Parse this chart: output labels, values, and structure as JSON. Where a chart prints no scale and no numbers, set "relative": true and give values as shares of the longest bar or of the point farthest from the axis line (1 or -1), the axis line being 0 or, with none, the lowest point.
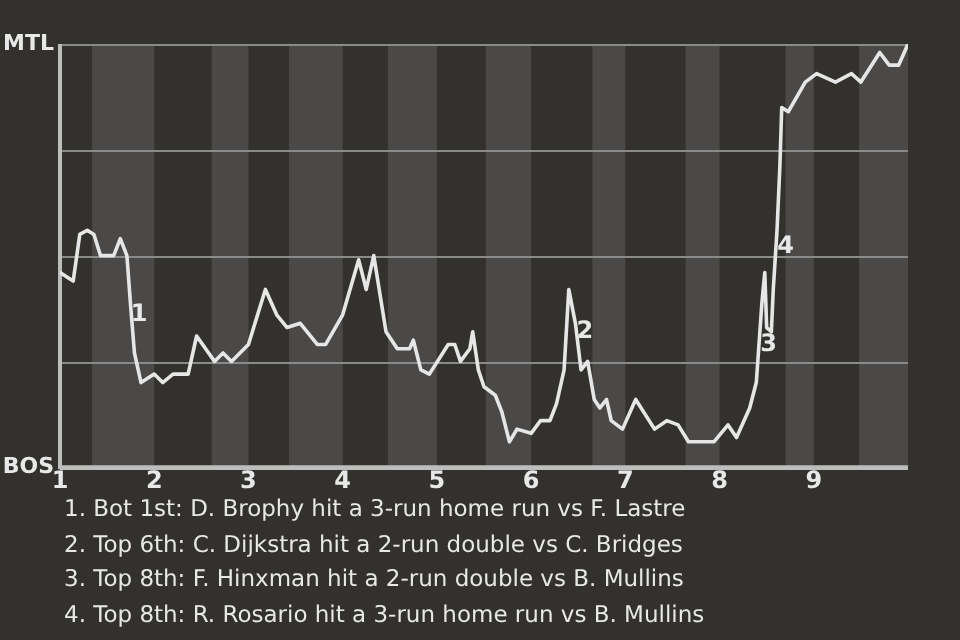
{
  "chart_data": {
    "type": "line",
    "relative": true,
    "x": [
      1,
      1.14,
      1.21,
      1.29,
      1.36,
      1.43,
      1.57,
      1.64,
      1.71,
      1.75,
      1.79,
      1.86,
      1.93,
      2,
      2.09,
      2.2,
      2.36,
      2.45,
      2.64,
      2.73,
      2.82,
      3,
      3.18,
      3.3,
      3.41,
      3.55,
      3.73,
      3.82,
      4,
      4.17,
      4.25,
      4.33,
      4.46,
      4.58,
      4.71,
      4.75,
      4.83,
      4.92,
      5.12,
      5.19,
      5.25,
      5.35,
      5.38,
      5.44,
      5.5,
      5.62,
      5.69,
      5.77,
      5.85,
      6,
      6.1,
      6.2,
      6.27,
      6.35,
      6.4,
      6.47,
      6.53,
      6.6,
      6.67,
      6.73,
      6.8,
      6.85,
      6.97,
      7.11,
      7.31,
      7.44,
      7.56,
      7.67,
      7.83,
      7.94,
      8.09,
      8.18,
      8.32,
      8.39,
      8.45,
      8.48,
      8.5,
      8.55,
      8.57,
      8.61,
      8.64,
      8.66,
      8.73,
      8.91,
      9.03,
      9.23,
      9.4,
      9.5,
      9.7,
      9.8,
      9.9,
      10
    ],
    "series": [
      {
        "color": "#e6e6e6",
        "values": [
          0.46,
          0.44,
          0.55,
          0.56,
          0.55,
          0.5,
          0.5,
          0.54,
          0.5,
          0.38,
          0.27,
          0.2,
          0.21,
          0.22,
          0.2,
          0.22,
          0.22,
          0.31,
          0.25,
          0.27,
          0.25,
          0.29,
          0.42,
          0.36,
          0.33,
          0.34,
          0.29,
          0.29,
          0.36,
          0.49,
          0.42,
          0.5,
          0.32,
          0.28,
          0.28,
          0.3,
          0.23,
          0.22,
          0.29,
          0.29,
          0.25,
          0.28,
          0.32,
          0.23,
          0.19,
          0.17,
          0.13,
          0.06,
          0.09,
          0.08,
          0.11,
          0.11,
          0.15,
          0.23,
          0.42,
          0.34,
          0.23,
          0.25,
          0.16,
          0.14,
          0.16,
          0.11,
          0.09,
          0.16,
          0.09,
          0.11,
          0.1,
          0.06,
          0.06,
          0.06,
          0.1,
          0.07,
          0.14,
          0.2,
          0.39,
          0.46,
          0.33,
          0.32,
          0.42,
          0.56,
          0.71,
          0.85,
          0.84,
          0.91,
          0.93,
          0.91,
          0.93,
          0.91,
          0.98,
          0.95,
          0.95,
          1.0
        ]
      }
    ],
    "xlim": [
      1,
      10
    ],
    "xticks": [
      1,
      2,
      3,
      4,
      5,
      6,
      7,
      8,
      9
    ],
    "marker": "none",
    "legend": false,
    "ref_lines": [
      {
        "axis": "y",
        "value": 0.25,
        "color": "#8a8a8a"
      },
      {
        "axis": "y",
        "value": 0.5,
        "color": "#8a8a8a"
      },
      {
        "axis": "y",
        "value": 0.75,
        "color": "#8a8a8a"
      },
      {
        "axis": "y",
        "value": 1,
        "color": "#8a8a8a",
        "label": "MTL"
      },
      {
        "axis": "y",
        "value": 0,
        "color": "#bdbdbd",
        "label": "BOS"
      }
    ],
    "bands": [
      {
        "axis": "x",
        "from": 1.34,
        "to": 2,
        "color": "#4b4947"
      },
      {
        "axis": "x",
        "from": 2.61,
        "to": 3,
        "color": "#4b4947"
      },
      {
        "axis": "x",
        "from": 3.43,
        "to": 4,
        "color": "#4b4947"
      },
      {
        "axis": "x",
        "from": 4.48,
        "to": 5,
        "color": "#4b4947"
      },
      {
        "axis": "x",
        "from": 5.52,
        "to": 6,
        "color": "#4b4947"
      },
      {
        "axis": "x",
        "from": 6.65,
        "to": 7,
        "color": "#4b4947"
      },
      {
        "axis": "x",
        "from": 7.64,
        "to": 8,
        "color": "#4b4947"
      },
      {
        "axis": "x",
        "from": 8.7,
        "to": 9,
        "color": "#4b4947"
      },
      {
        "axis": "x",
        "from": 9.48,
        "to": 10,
        "color": "#4b4947"
      }
    ],
    "annotations": [
      {
        "text": "1",
        "x": 1.84,
        "y": 0.36
      },
      {
        "text": "2",
        "x": 6.57,
        "y": 0.32
      },
      {
        "text": "3",
        "x": 8.52,
        "y": 0.29
      },
      {
        "text": "4",
        "x": 8.7,
        "y": 0.52
      },
      "1. Bot 1st: D. Brophy hit a 3-run home run vs F. Lastre",
      "2. Top 6th: C. Dijkstra hit a 2-run double vs C. Bridges",
      "3. Top 8th: F. Hinxman hit a 2-run double vs B. Mullins",
      "4. Top 8th: R. Rosario hit a 3-run home run vs B. Mullins"
    ]
  }
}
